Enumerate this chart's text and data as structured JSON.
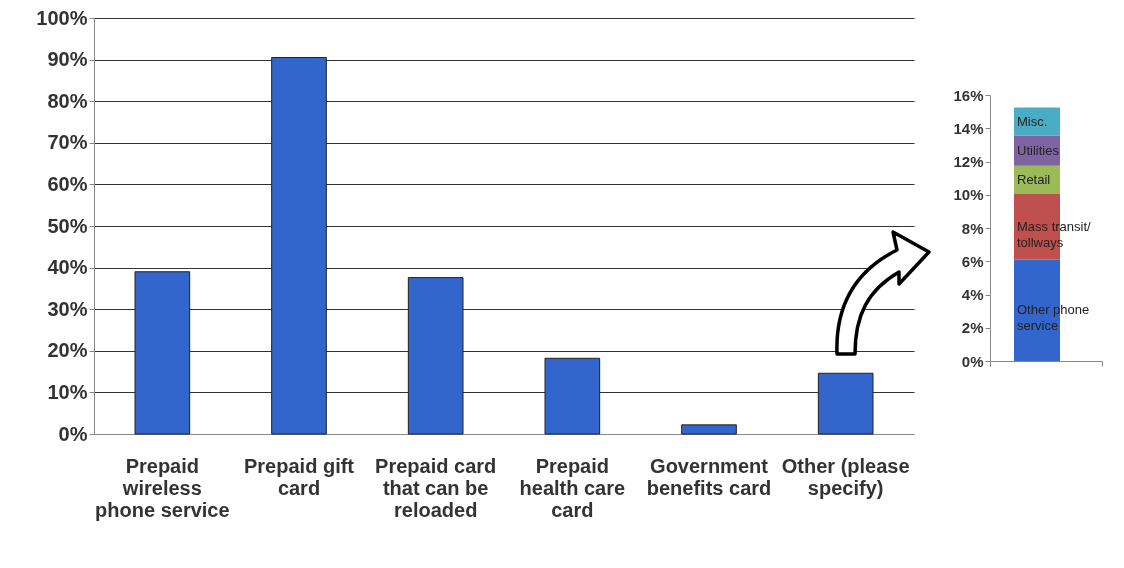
{
  "chart_data": [
    {
      "type": "bar",
      "categories": [
        "Prepaid wireless phone service",
        "Prepaid gift card",
        "Prepaid card that can be reloaded",
        "Prepaid health care card",
        "Government benefits card",
        "Other (please specify)"
      ],
      "values": [
        39,
        90.5,
        37.6,
        18.2,
        2.2,
        14.6
      ],
      "color": "#3366cc",
      "ylim": [
        0,
        100
      ],
      "yticks": [
        {
          "value": 0,
          "label": "0%"
        },
        {
          "value": 10,
          "label": "10%"
        },
        {
          "value": 20,
          "label": "20%"
        },
        {
          "value": 30,
          "label": "30%"
        },
        {
          "value": 40,
          "label": "40%"
        },
        {
          "value": 50,
          "label": "50%"
        },
        {
          "value": 60,
          "label": "60%"
        },
        {
          "value": 70,
          "label": "70%"
        },
        {
          "value": 80,
          "label": "80%"
        },
        {
          "value": 90,
          "label": "90%"
        },
        {
          "value": 100,
          "label": "100%"
        }
      ],
      "grid": "y"
    },
    {
      "type": "bar",
      "stacked": true,
      "categories": [
        null
      ],
      "series": [
        {
          "name": "Other phone service",
          "color": "#3366cc",
          "values": [
            6.1
          ]
        },
        {
          "name": "Mass transit/ tollways",
          "color": "#c0504d",
          "values": [
            3.95
          ]
        },
        {
          "name": "Retail",
          "color": "#9bbb59",
          "values": [
            1.7
          ]
        },
        {
          "name": "Utilities",
          "color": "#8064a2",
          "values": [
            1.8
          ]
        },
        {
          "name": "Misc.",
          "color": "#4bacc6",
          "values": [
            1.7
          ]
        }
      ],
      "ylim": [
        0,
        16
      ],
      "yticks": [
        {
          "value": 0,
          "label": "0%"
        },
        {
          "value": 2,
          "label": "2%"
        },
        {
          "value": 4,
          "label": "4%"
        },
        {
          "value": 6,
          "label": "6%"
        },
        {
          "value": 8,
          "label": "8%"
        },
        {
          "value": 10,
          "label": "10%"
        },
        {
          "value": 12,
          "label": "12%"
        },
        {
          "value": 14,
          "label": "14%"
        },
        {
          "value": 16,
          "label": "16%"
        }
      ]
    }
  ]
}
